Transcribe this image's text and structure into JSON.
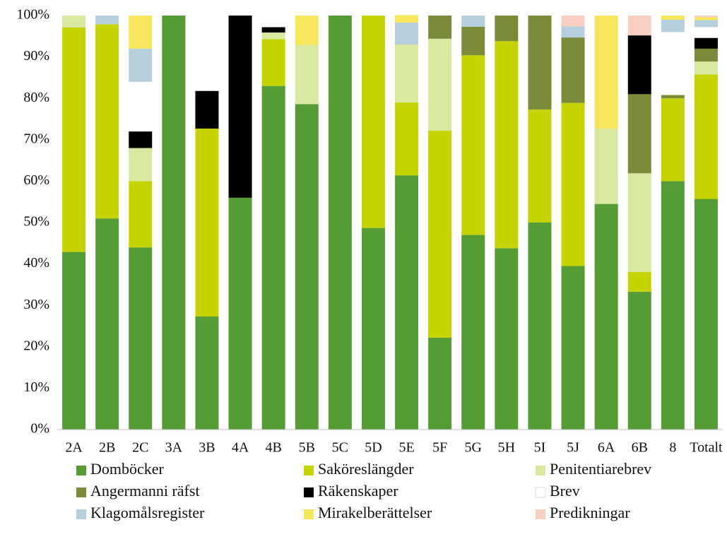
{
  "chart_data": {
    "type": "stacked_bar",
    "categories": [
      "2A",
      "2B",
      "2C",
      "3A",
      "3B",
      "4A",
      "4B",
      "5B",
      "5C",
      "5D",
      "5E",
      "5F",
      "5G",
      "5H",
      "5I",
      "5J",
      "6A",
      "6B",
      "8",
      "Totalt"
    ],
    "series": [
      {
        "name": "Domböcker",
        "color": "#559c35",
        "values": [
          42.9,
          51,
          44,
          100,
          27.3,
          56,
          83,
          78.6,
          100,
          48.7,
          61.4,
          22.2,
          47,
          43.8,
          50,
          39.5,
          54.5,
          33.3,
          60,
          55.7
        ]
      },
      {
        "name": "Saköreslängder",
        "color": "#c5d400",
        "values": [
          54.2,
          46.9,
          16,
          0,
          45.4,
          0,
          11.3,
          0,
          0,
          51.3,
          17.6,
          50,
          43.4,
          50,
          27.3,
          39.4,
          0,
          4.8,
          20,
          30.1
        ]
      },
      {
        "name": "Penitentiarebrev",
        "color": "#d8e8a0",
        "values": [
          2.9,
          0,
          8,
          0,
          0,
          0,
          1.6,
          14.3,
          0,
          0,
          14,
          22.2,
          0,
          0,
          0,
          0,
          18.2,
          23.8,
          0,
          3.1
        ]
      },
      {
        "name": "Angermanni räfst",
        "color": "#7b8b3a",
        "values": [
          0,
          0,
          0,
          0,
          0,
          0,
          0,
          0,
          0,
          0,
          0,
          5.6,
          6.9,
          6.2,
          22.7,
          15.8,
          0,
          19.1,
          0.8,
          3.1
        ]
      },
      {
        "name": "Räkenskaper",
        "color": "#000000",
        "values": [
          0,
          0,
          4,
          0,
          9.1,
          44,
          1.3,
          0,
          0,
          0,
          0,
          0,
          0,
          0,
          0,
          0,
          0,
          14.2,
          0,
          2.6
        ]
      },
      {
        "name": "Brev",
        "color": "#ffffff",
        "values": [
          0,
          0,
          12,
          0,
          18.2,
          0,
          2.8,
          0,
          0,
          0,
          0,
          0,
          0,
          0,
          0,
          0,
          0,
          0,
          15.2,
          2.6
        ]
      },
      {
        "name": "Klagomålsregister",
        "color": "#b5cfdc",
        "values": [
          0,
          2.1,
          8,
          0,
          0,
          0,
          0,
          0,
          0,
          0,
          5.3,
          0,
          2.7,
          0,
          0,
          2.7,
          0,
          0,
          3,
          1.7
        ]
      },
      {
        "name": "Mirakelberättelser",
        "color": "#f6e65c",
        "values": [
          0,
          0,
          8,
          0,
          0,
          0,
          0,
          7.1,
          0,
          0,
          1.8,
          0,
          0,
          0,
          0,
          0,
          27.3,
          0,
          1,
          0.7
        ]
      },
      {
        "name": "Predikningar",
        "color": "#f8cfc0",
        "values": [
          0,
          0,
          0,
          0,
          0,
          0,
          0,
          0,
          0,
          0,
          0,
          0,
          0,
          0,
          0,
          2.6,
          0,
          4.8,
          0,
          0.4
        ]
      }
    ],
    "ylim": [
      0,
      100
    ],
    "yticks": [
      {
        "value": 0,
        "label": "0%"
      },
      {
        "value": 10,
        "label": "10%"
      },
      {
        "value": 20,
        "label": "20%"
      },
      {
        "value": 30,
        "label": "30%"
      },
      {
        "value": 40,
        "label": "40%"
      },
      {
        "value": 50,
        "label": "50%"
      },
      {
        "value": 60,
        "label": "60%"
      },
      {
        "value": 70,
        "label": "70%"
      },
      {
        "value": 80,
        "label": "80%"
      },
      {
        "value": 90,
        "label": "90%"
      },
      {
        "value": 100,
        "label": "100%"
      }
    ],
    "grid": false
  }
}
